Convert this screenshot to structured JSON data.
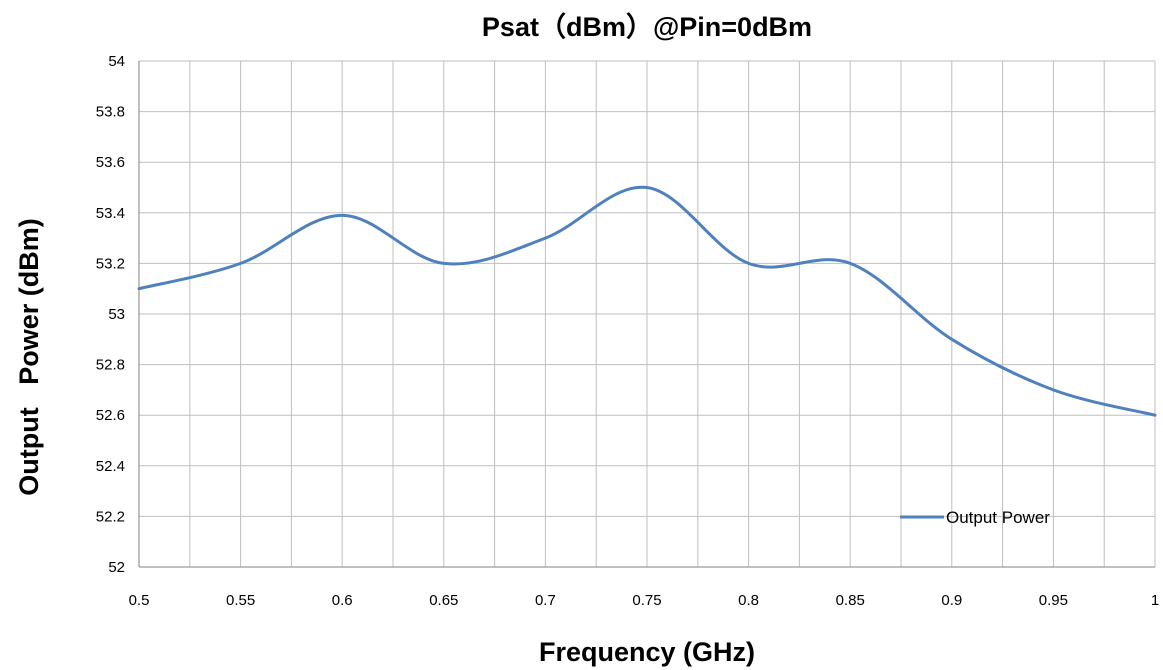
{
  "chart_data": {
    "type": "line",
    "title": "Psat（dBm）@Pin=0dBm",
    "xlabel": "Frequency (GHz)",
    "ylabel": "Output   Power (dBm)",
    "xlim": [
      0.5,
      1.0
    ],
    "ylim": [
      52,
      54
    ],
    "x_ticks": [
      "0.5",
      "0.55",
      "0.6",
      "0.65",
      "0.7",
      "0.75",
      "0.8",
      "0.85",
      "0.9",
      "0.95",
      "1"
    ],
    "y_ticks": [
      "52",
      "52.2",
      "52.4",
      "52.6",
      "52.8",
      "53",
      "53.2",
      "53.4",
      "53.6",
      "53.8",
      "54"
    ],
    "grid": true,
    "legend_position": "bottom-right",
    "series": [
      {
        "name": "Output Power",
        "color": "#4f81bd",
        "x": [
          0.5,
          0.55,
          0.6,
          0.65,
          0.7,
          0.75,
          0.8,
          0.85,
          0.9,
          0.95,
          1.0
        ],
        "y": [
          53.1,
          53.2,
          53.39,
          53.2,
          53.3,
          53.5,
          53.2,
          53.2,
          52.9,
          52.7,
          52.6
        ]
      }
    ]
  }
}
